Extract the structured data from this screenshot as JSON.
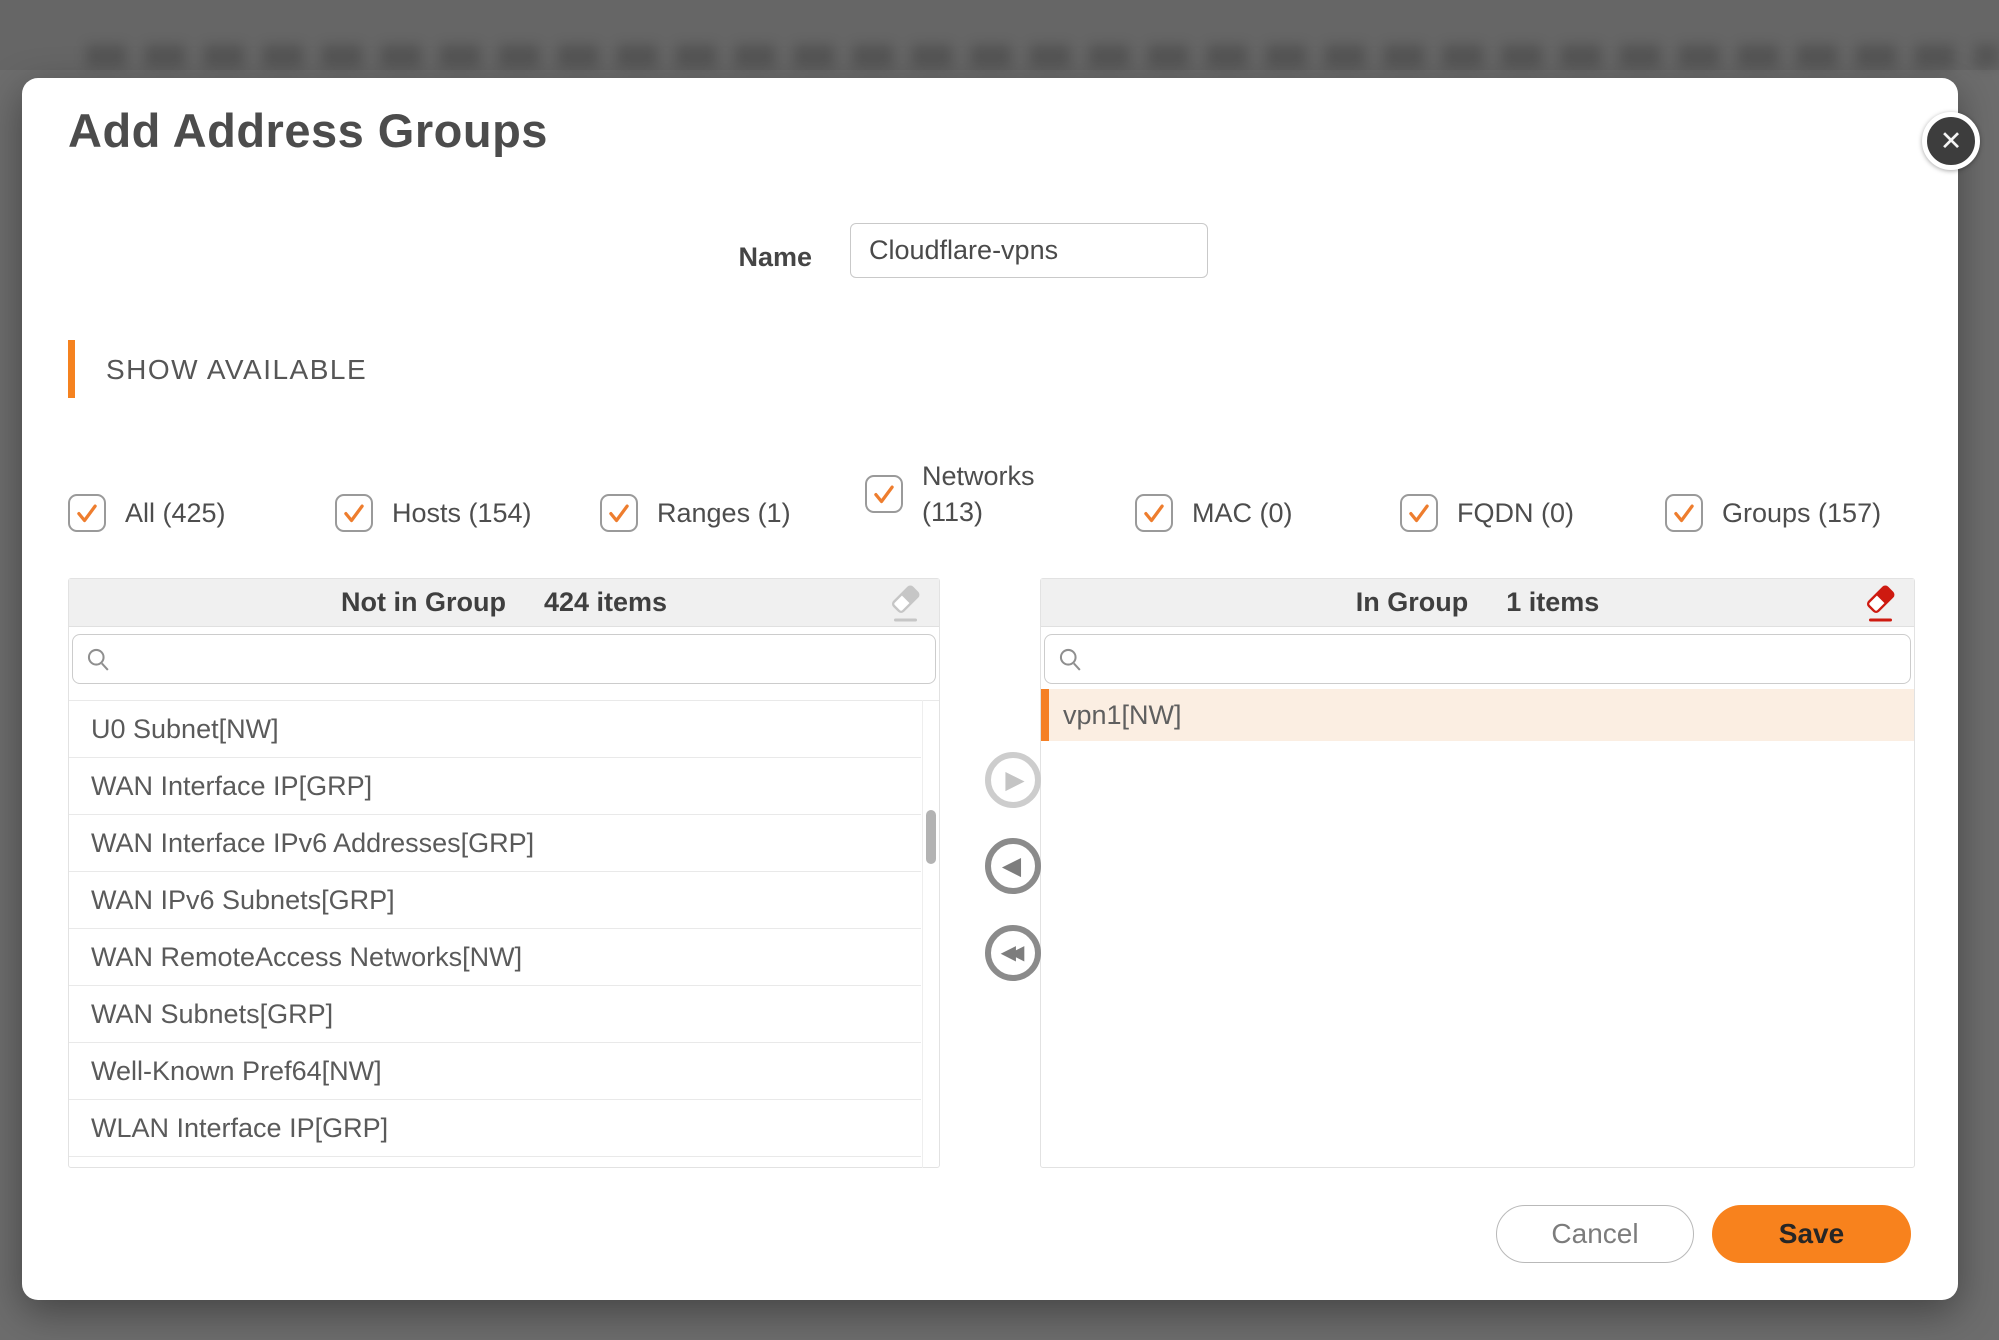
{
  "modal": {
    "title": "Add Address Groups",
    "close_glyph": "✕",
    "name": {
      "label": "Name",
      "value": "Cloudflare-vpns"
    },
    "section_title": "SHOW AVAILABLE",
    "filters": [
      {
        "label": "All (425)",
        "checked": true
      },
      {
        "label": "Hosts (154)",
        "checked": true
      },
      {
        "label": "Ranges (1)",
        "checked": true
      },
      {
        "label": "Networks (113)",
        "checked": true,
        "two_line": true
      },
      {
        "label": "MAC (0)",
        "checked": true
      },
      {
        "label": "FQDN (0)",
        "checked": true
      },
      {
        "label": "Groups (157)",
        "checked": true
      }
    ],
    "left_panel": {
      "title": "Not in Group",
      "count": "424 items",
      "search_value": "",
      "items": [
        {
          "label": "U0 Subnet[NW]"
        },
        {
          "label": "WAN Interface IP[GRP]"
        },
        {
          "label": "WAN Interface IPv6 Addresses[GRP]"
        },
        {
          "label": "WAN IPv6 Subnets[GRP]"
        },
        {
          "label": "WAN RemoteAccess Networks[NW]"
        },
        {
          "label": "WAN Subnets[GRP]"
        },
        {
          "label": "Well-Known Pref64[NW]"
        },
        {
          "label": "WLAN Interface IP[GRP]"
        }
      ]
    },
    "right_panel": {
      "title": "In Group",
      "count": "1 items",
      "search_value": "",
      "items": [
        {
          "label": "vpn1[NW]",
          "selected": true
        }
      ]
    },
    "transfer": {
      "move_right_glyph": "▶",
      "move_left_glyph": "◀",
      "move_all_left_glyph": "◀◀"
    },
    "footer": {
      "cancel_label": "Cancel",
      "save_label": "Save"
    },
    "colors": {
      "accent_orange": "#F5821F",
      "eraser_red": "#CE1A10",
      "check_orange": "#EE7D2E"
    }
  }
}
